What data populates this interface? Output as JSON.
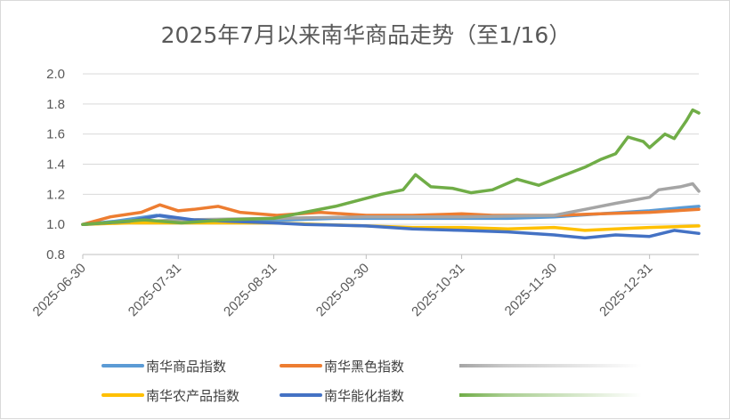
{
  "chart_data": {
    "type": "line",
    "title": "2025年7月以来南华商品走势（至1/16）",
    "xlabel": "",
    "ylabel": "",
    "x_start": "2025-06-30",
    "x_end": "2026-01-16",
    "ylim": [
      0.8,
      2.0
    ],
    "yticks": [
      "0.8",
      "1.0",
      "1.2",
      "1.4",
      "1.6",
      "1.8",
      "2.0"
    ],
    "xticks": [
      "2025-06-30",
      "2025-07-31",
      "2025-08-31",
      "2025-09-30",
      "2025-10-31",
      "2025-11-30",
      "2025-12-31"
    ],
    "grid": "horizontal",
    "legend_position": "bottom",
    "series": [
      {
        "name": "南华商品指数",
        "color": "#5B9BD5",
        "points": [
          [
            "2025-06-30",
            1.0
          ],
          [
            "2025-07-10",
            1.02
          ],
          [
            "2025-07-24",
            1.06
          ],
          [
            "2025-08-05",
            1.02
          ],
          [
            "2025-08-20",
            1.03
          ],
          [
            "2025-09-05",
            1.03
          ],
          [
            "2025-09-20",
            1.04
          ],
          [
            "2025-10-01",
            1.04
          ],
          [
            "2025-10-15",
            1.04
          ],
          [
            "2025-10-31",
            1.04
          ],
          [
            "2025-11-15",
            1.04
          ],
          [
            "2025-11-30",
            1.05
          ],
          [
            "2025-12-15",
            1.07
          ],
          [
            "2025-12-31",
            1.09
          ],
          [
            "2026-01-10",
            1.11
          ],
          [
            "2026-01-16",
            1.12
          ]
        ]
      },
      {
        "name": "南华黑色指数",
        "color": "#ED7D31",
        "points": [
          [
            "2025-06-30",
            1.0
          ],
          [
            "2025-07-09",
            1.05
          ],
          [
            "2025-07-19",
            1.08
          ],
          [
            "2025-07-25",
            1.13
          ],
          [
            "2025-07-31",
            1.09
          ],
          [
            "2025-08-05",
            1.1
          ],
          [
            "2025-08-13",
            1.12
          ],
          [
            "2025-08-20",
            1.08
          ],
          [
            "2025-09-01",
            1.06
          ],
          [
            "2025-09-15",
            1.08
          ],
          [
            "2025-09-30",
            1.06
          ],
          [
            "2025-10-15",
            1.06
          ],
          [
            "2025-10-31",
            1.07
          ],
          [
            "2025-11-10",
            1.06
          ],
          [
            "2025-11-30",
            1.06
          ],
          [
            "2025-12-15",
            1.07
          ],
          [
            "2025-12-31",
            1.08
          ],
          [
            "2026-01-16",
            1.1
          ]
        ]
      },
      {
        "name": "",
        "color": "#A5A5A5",
        "points": [
          [
            "2025-06-30",
            1.0
          ],
          [
            "2025-07-31",
            1.03
          ],
          [
            "2025-08-31",
            1.04
          ],
          [
            "2025-09-30",
            1.05
          ],
          [
            "2025-10-31",
            1.05
          ],
          [
            "2025-11-30",
            1.06
          ],
          [
            "2025-12-10",
            1.1
          ],
          [
            "2025-12-20",
            1.14
          ],
          [
            "2025-12-31",
            1.18
          ],
          [
            "2026-01-03",
            1.23
          ],
          [
            "2026-01-10",
            1.25
          ],
          [
            "2026-01-14",
            1.27
          ],
          [
            "2026-01-16",
            1.22
          ]
        ]
      },
      {
        "name": "南华农产品指数",
        "color": "#FFC000",
        "points": [
          [
            "2025-06-30",
            1.0
          ],
          [
            "2025-07-15",
            1.01
          ],
          [
            "2025-08-01",
            1.01
          ],
          [
            "2025-08-31",
            1.01
          ],
          [
            "2025-09-15",
            1.0
          ],
          [
            "2025-09-30",
            0.99
          ],
          [
            "2025-10-15",
            0.98
          ],
          [
            "2025-10-31",
            0.98
          ],
          [
            "2025-11-15",
            0.97
          ],
          [
            "2025-11-30",
            0.98
          ],
          [
            "2025-12-10",
            0.96
          ],
          [
            "2025-12-20",
            0.97
          ],
          [
            "2025-12-31",
            0.98
          ],
          [
            "2026-01-16",
            0.99
          ]
        ]
      },
      {
        "name": "南华能化指数",
        "color": "#4472C4",
        "points": [
          [
            "2025-06-30",
            1.0
          ],
          [
            "2025-07-15",
            1.02
          ],
          [
            "2025-07-25",
            1.06
          ],
          [
            "2025-08-05",
            1.03
          ],
          [
            "2025-08-31",
            1.01
          ],
          [
            "2025-09-10",
            1.0
          ],
          [
            "2025-09-30",
            0.99
          ],
          [
            "2025-10-15",
            0.97
          ],
          [
            "2025-10-31",
            0.96
          ],
          [
            "2025-11-15",
            0.95
          ],
          [
            "2025-11-30",
            0.93
          ],
          [
            "2025-12-10",
            0.91
          ],
          [
            "2025-12-20",
            0.93
          ],
          [
            "2025-12-31",
            0.92
          ],
          [
            "2026-01-08",
            0.96
          ],
          [
            "2026-01-16",
            0.94
          ]
        ]
      },
      {
        "name": "",
        "color": "#70AD47",
        "points": [
          [
            "2025-06-30",
            1.0
          ],
          [
            "2025-07-20",
            1.03
          ],
          [
            "2025-08-01",
            1.01
          ],
          [
            "2025-08-15",
            1.03
          ],
          [
            "2025-08-31",
            1.04
          ],
          [
            "2025-09-10",
            1.08
          ],
          [
            "2025-09-20",
            1.12
          ],
          [
            "2025-10-05",
            1.2
          ],
          [
            "2025-10-12",
            1.23
          ],
          [
            "2025-10-16",
            1.33
          ],
          [
            "2025-10-21",
            1.25
          ],
          [
            "2025-10-28",
            1.24
          ],
          [
            "2025-11-03",
            1.21
          ],
          [
            "2025-11-10",
            1.23
          ],
          [
            "2025-11-18",
            1.3
          ],
          [
            "2025-11-25",
            1.26
          ],
          [
            "2025-11-30",
            1.3
          ],
          [
            "2025-12-05",
            1.34
          ],
          [
            "2025-12-10",
            1.38
          ],
          [
            "2025-12-15",
            1.43
          ],
          [
            "2025-12-20",
            1.47
          ],
          [
            "2025-12-24",
            1.58
          ],
          [
            "2025-12-29",
            1.55
          ],
          [
            "2025-12-31",
            1.51
          ],
          [
            "2026-01-05",
            1.6
          ],
          [
            "2026-01-08",
            1.57
          ],
          [
            "2026-01-12",
            1.69
          ],
          [
            "2026-01-14",
            1.76
          ],
          [
            "2026-01-16",
            1.74
          ]
        ]
      }
    ]
  }
}
